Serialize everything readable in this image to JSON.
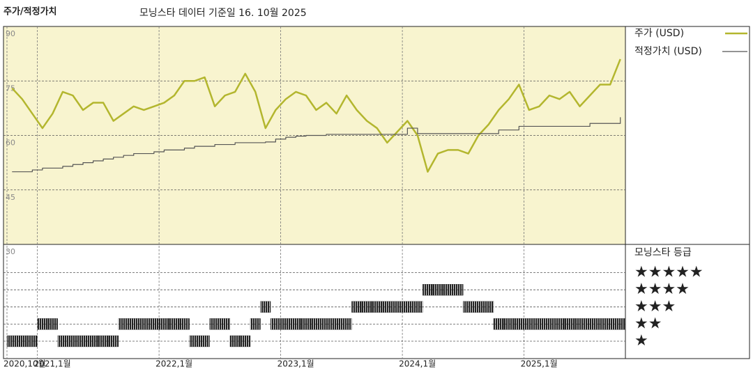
{
  "chart_data": {
    "type": "line",
    "title": "주가/적정가치",
    "subtitle": "모닝스타 데이터 기준일 16. 10월 2025",
    "x": [
      "2020-10",
      "2020-11",
      "2020-12",
      "2021-01",
      "2021-02",
      "2021-03",
      "2021-04",
      "2021-05",
      "2021-06",
      "2021-07",
      "2021-08",
      "2021-09",
      "2021-10",
      "2021-11",
      "2021-12",
      "2022-01",
      "2022-02",
      "2022-03",
      "2022-04",
      "2022-05",
      "2022-06",
      "2022-07",
      "2022-08",
      "2022-09",
      "2022-10",
      "2022-11",
      "2022-12",
      "2023-01",
      "2023-02",
      "2023-03",
      "2023-04",
      "2023-05",
      "2023-06",
      "2023-07",
      "2023-08",
      "2023-09",
      "2023-10",
      "2023-11",
      "2023-12",
      "2024-01",
      "2024-02",
      "2024-03",
      "2024-04",
      "2024-05",
      "2024-06",
      "2024-07",
      "2024-08",
      "2024-09",
      "2024-10",
      "2024-11",
      "2024-12",
      "2025-01",
      "2025-02",
      "2025-03",
      "2025-04",
      "2025-05",
      "2025-06",
      "2025-07",
      "2025-08",
      "2025-09",
      "2025-10"
    ],
    "xlim": [
      "2020-10",
      "2025-11"
    ],
    "xticks": [
      {
        "value": "2020-10",
        "label": "2020,10월"
      },
      {
        "value": "2021-01",
        "label": "2021,1월"
      },
      {
        "value": "2022-01",
        "label": "2022,1월"
      },
      {
        "value": "2023-01",
        "label": "2023,1월"
      },
      {
        "value": "2024-01",
        "label": "2024,1월"
      },
      {
        "value": "2025-01",
        "label": "2025,1월"
      }
    ],
    "ylim": [
      30,
      90
    ],
    "yticks": [
      30,
      45,
      60,
      75,
      90
    ],
    "grid": true,
    "series": [
      {
        "name": "주가 (USD)",
        "color": "#b3b62e",
        "step": false,
        "values": [
          73,
          70,
          66,
          62,
          66,
          72,
          71,
          67,
          69,
          69,
          64,
          66,
          68,
          67,
          68,
          69,
          71,
          75,
          75,
          76,
          68,
          71,
          72,
          77,
          72,
          62,
          67,
          70,
          72,
          71,
          67,
          69,
          66,
          71,
          67,
          64,
          62,
          58,
          61,
          64,
          60,
          50,
          55,
          56,
          56,
          55,
          60,
          63,
          67,
          70,
          74,
          67,
          68,
          71,
          70,
          72,
          68,
          71,
          74,
          74,
          81
        ]
      },
      {
        "name": "적정가치 (USD)",
        "color": "#555555",
        "step": true,
        "values": [
          50,
          50,
          50.5,
          51,
          51,
          51.5,
          52,
          52.5,
          53,
          53.5,
          54,
          54.5,
          55,
          55,
          55.5,
          56,
          56,
          56.5,
          57,
          57,
          57.5,
          57.5,
          58,
          58,
          58,
          58.2,
          59,
          59.5,
          59.8,
          60,
          60,
          60.3,
          60.3,
          60.3,
          60.3,
          60.3,
          60.3,
          60.3,
          60.3,
          62,
          60.5,
          60.5,
          60.5,
          60.5,
          60.5,
          60.5,
          60.5,
          60.5,
          61.5,
          61.5,
          62.5,
          62.5,
          62.5,
          62.5,
          62.5,
          62.5,
          62.5,
          63.3,
          63.3,
          63.3,
          65
        ]
      }
    ],
    "ratings": {
      "title": "모닝스타 등급",
      "levels": [
        {
          "value": 5,
          "label": "★★★★★"
        },
        {
          "value": 4,
          "label": "★★★★"
        },
        {
          "value": 3,
          "label": "★★★"
        },
        {
          "value": 2,
          "label": "★★"
        },
        {
          "value": 1,
          "label": "★"
        }
      ],
      "color": "#222222",
      "values": [
        1,
        1,
        1,
        2,
        2,
        1,
        1,
        1,
        1,
        1,
        1,
        2,
        2,
        2,
        2,
        2,
        2,
        2,
        1,
        1,
        2,
        2,
        1,
        1,
        2,
        3,
        2,
        2,
        2,
        2,
        2,
        2,
        2,
        2,
        3,
        3,
        3,
        3,
        3,
        3,
        3,
        4,
        4,
        4,
        4,
        3,
        3,
        3,
        2,
        2,
        2,
        2,
        2,
        2,
        2,
        2,
        2,
        2,
        2,
        2,
        2
      ]
    }
  }
}
